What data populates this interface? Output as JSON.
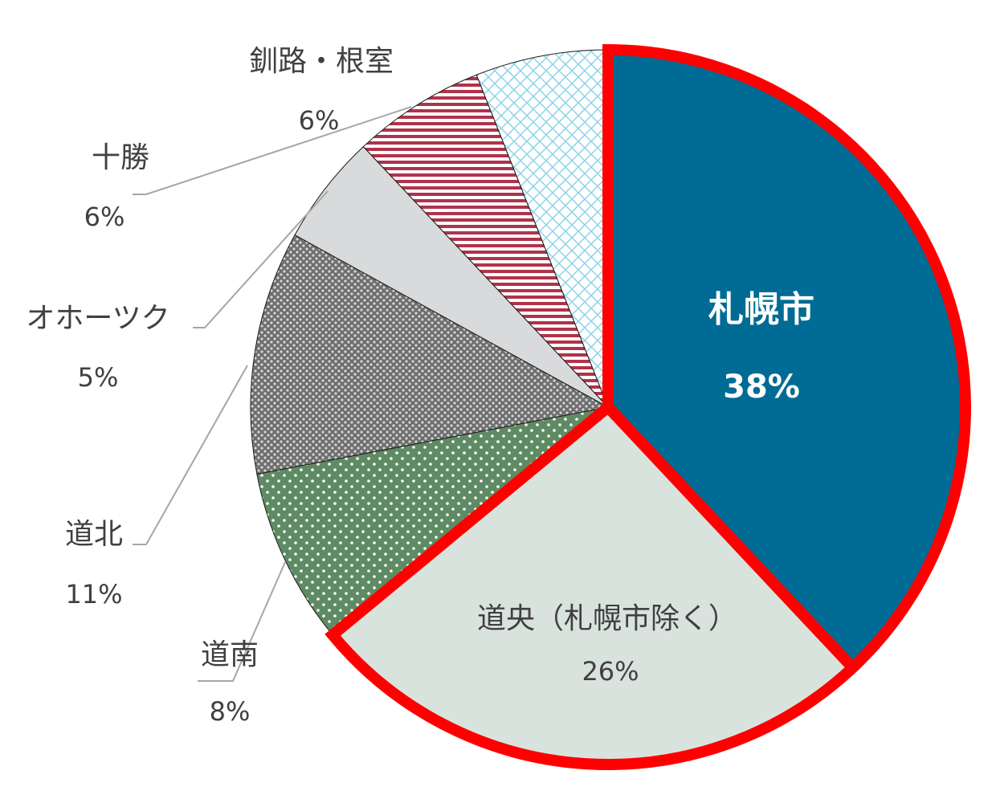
{
  "chart_data": {
    "type": "pie",
    "slices": [
      {
        "label": "札幌市",
        "value": 38,
        "value_label": "38%",
        "highlighted": true,
        "fill": "#006B94",
        "pattern": "solid"
      },
      {
        "label": "道央（札幌市除く）",
        "value": 26,
        "value_label": "26%",
        "highlighted": true,
        "fill": "#D9E3DE",
        "pattern": "solid"
      },
      {
        "label": "道南",
        "value": 8,
        "value_label": "8%",
        "highlighted": false,
        "fill": "#5E8B63",
        "pattern": "dots-white"
      },
      {
        "label": "道北",
        "value": 11,
        "value_label": "11%",
        "highlighted": false,
        "fill": "#6E6E6E",
        "pattern": "dots-gray"
      },
      {
        "label": "オホーツク",
        "value": 5,
        "value_label": "5%",
        "highlighted": false,
        "fill": "#D9DADB",
        "pattern": "solid"
      },
      {
        "label": "十勝",
        "value": 6,
        "value_label": "6%",
        "highlighted": false,
        "fill": "#B0334B",
        "pattern": "stripes-red"
      },
      {
        "label": "釧路・根室",
        "value": 6,
        "value_label": "6%",
        "highlighted": false,
        "fill": "#ffffff",
        "pattern": "crosshatch-blue"
      }
    ],
    "start_angle": "12 o'clock",
    "direction": "clockwise",
    "highlight_color": "#FF0000",
    "legend": "none"
  }
}
